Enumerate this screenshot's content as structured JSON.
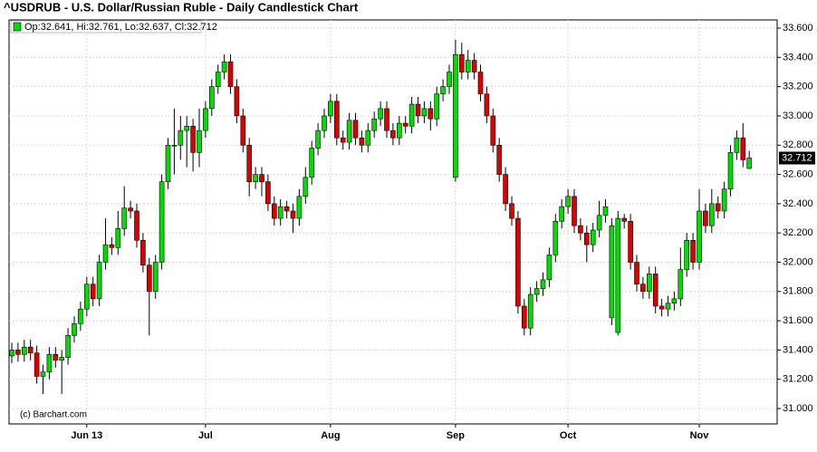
{
  "chart_data": {
    "type": "candlestick",
    "title": "^USDRUB - U.S. Dollar/Russian Ruble - Daily Candlestick Chart",
    "legend_text": "Op:32.641, Hi:32.761, Lo:32.637, Cl:32.712",
    "credit": "(c) Barchart.com",
    "up_color": "#00dd00",
    "down_color": "#dd0000",
    "grid": true,
    "ylim": [
      30.895,
      33.656
    ],
    "yticks": [
      {
        "value": 31.0,
        "label": "31.000"
      },
      {
        "value": 31.2,
        "label": "31.200"
      },
      {
        "value": 31.4,
        "label": "31.400"
      },
      {
        "value": 31.6,
        "label": "31.600"
      },
      {
        "value": 31.8,
        "label": "31.800"
      },
      {
        "value": 32.0,
        "label": "32.000"
      },
      {
        "value": 32.2,
        "label": "32.200"
      },
      {
        "value": 32.4,
        "label": "32.400"
      },
      {
        "value": 32.6,
        "label": "32.600"
      },
      {
        "value": 32.8,
        "label": "32.800"
      },
      {
        "value": 33.0,
        "label": "33.000"
      },
      {
        "value": 33.2,
        "label": "33.200"
      },
      {
        "value": 33.4,
        "label": "33.400"
      },
      {
        "value": 33.6,
        "label": "33.600"
      }
    ],
    "categories": [
      null,
      null,
      null,
      null,
      null,
      null,
      null,
      null,
      null,
      null,
      null,
      null,
      "Jun 13",
      null,
      null,
      null,
      null,
      null,
      null,
      null,
      null,
      null,
      null,
      null,
      null,
      null,
      null,
      null,
      null,
      null,
      null,
      "Jul",
      null,
      null,
      null,
      null,
      null,
      null,
      null,
      null,
      null,
      null,
      null,
      null,
      null,
      null,
      null,
      null,
      null,
      null,
      null,
      "Aug",
      null,
      null,
      null,
      null,
      null,
      null,
      null,
      null,
      null,
      null,
      null,
      null,
      null,
      null,
      null,
      null,
      null,
      null,
      null,
      "Sep",
      null,
      null,
      null,
      null,
      null,
      null,
      null,
      null,
      null,
      null,
      null,
      null,
      null,
      null,
      null,
      null,
      null,
      "Oct",
      null,
      null,
      null,
      null,
      null,
      null,
      null,
      null,
      null,
      null,
      null,
      null,
      null,
      null,
      null,
      null,
      null,
      null,
      null,
      null,
      "Nov",
      null,
      null,
      null,
      null,
      null,
      null,
      null,
      null
    ],
    "open": [
      31.36,
      31.4,
      31.37,
      31.42,
      31.38,
      31.22,
      31.25,
      31.37,
      31.33,
      31.35,
      31.5,
      31.58,
      31.68,
      31.85,
      31.75,
      32.0,
      32.12,
      32.1,
      32.23,
      32.37,
      32.35,
      32.15,
      31.98,
      31.8,
      32.0,
      32.55,
      32.8,
      32.8,
      32.9,
      32.93,
      32.75,
      32.9,
      33.05,
      33.2,
      33.3,
      33.37,
      33.2,
      33.0,
      32.8,
      32.55,
      32.6,
      32.55,
      32.4,
      32.3,
      32.38,
      32.35,
      32.3,
      32.45,
      32.58,
      32.78,
      32.9,
      33.0,
      33.1,
      32.85,
      32.82,
      32.97,
      32.85,
      32.8,
      32.9,
      32.98,
      33.05,
      32.9,
      32.85,
      32.95,
      32.93,
      33.08,
      33.0,
      33.05,
      32.98,
      33.15,
      33.2,
      32.58,
      33.42,
      33.3,
      33.38,
      33.3,
      33.15,
      33.0,
      32.8,
      32.6,
      32.4,
      32.3,
      31.7,
      31.55,
      31.78,
      31.82,
      31.88,
      32.05,
      32.28,
      32.38,
      32.45,
      32.25,
      32.2,
      32.12,
      32.22,
      32.32,
      31.62,
      31.52,
      32.3,
      32.28,
      32.0,
      31.85,
      31.8,
      31.92,
      31.7,
      31.68,
      31.72,
      31.75,
      31.95,
      32.15,
      32.0,
      32.35,
      32.25,
      32.4,
      32.35,
      32.5,
      32.75,
      32.85,
      32.641
    ],
    "high": [
      31.45,
      31.45,
      31.47,
      31.47,
      31.43,
      31.3,
      31.42,
      31.42,
      31.4,
      31.55,
      31.63,
      31.73,
      31.9,
      31.9,
      32.05,
      32.3,
      32.17,
      32.35,
      32.52,
      32.42,
      32.4,
      32.2,
      32.03,
      32.05,
      32.6,
      32.85,
      33.05,
      33.0,
      33.0,
      32.98,
      33.05,
      33.1,
      33.25,
      33.35,
      33.42,
      33.42,
      33.25,
      33.05,
      32.85,
      32.65,
      32.65,
      32.6,
      32.45,
      32.43,
      32.42,
      32.4,
      32.5,
      32.65,
      32.83,
      32.95,
      33.05,
      33.15,
      33.15,
      32.9,
      33.02,
      33.02,
      32.9,
      32.95,
      33.03,
      33.1,
      33.1,
      32.95,
      33.0,
      33.0,
      33.13,
      33.13,
      33.1,
      33.1,
      33.2,
      33.25,
      33.35,
      33.52,
      33.5,
      33.45,
      33.43,
      33.35,
      33.2,
      33.05,
      32.85,
      32.65,
      32.45,
      32.35,
      31.75,
      31.83,
      31.87,
      31.93,
      32.1,
      32.33,
      32.43,
      32.5,
      32.5,
      32.3,
      32.25,
      32.27,
      32.42,
      32.43,
      32.3,
      32.35,
      32.33,
      32.33,
      32.05,
      31.9,
      31.97,
      31.97,
      31.75,
      31.77,
      31.8,
      32.1,
      32.2,
      32.2,
      32.5,
      32.4,
      32.5,
      32.45,
      32.55,
      32.8,
      32.9,
      32.95,
      32.761
    ],
    "low": [
      31.31,
      31.32,
      31.32,
      31.33,
      31.17,
      31.1,
      31.2,
      31.28,
      31.1,
      31.3,
      31.45,
      31.53,
      31.63,
      31.7,
      31.7,
      31.95,
      32.05,
      32.05,
      32.18,
      32.3,
      32.1,
      31.93,
      31.5,
      31.75,
      31.95,
      32.5,
      32.6,
      32.7,
      32.65,
      32.62,
      32.65,
      32.85,
      33.0,
      33.15,
      33.25,
      33.15,
      32.95,
      32.75,
      32.45,
      32.5,
      32.45,
      32.35,
      32.25,
      32.25,
      32.3,
      32.2,
      32.25,
      32.4,
      32.53,
      32.73,
      32.85,
      32.95,
      32.8,
      32.77,
      32.77,
      32.8,
      32.75,
      32.75,
      32.85,
      32.93,
      32.85,
      32.8,
      32.8,
      32.88,
      32.88,
      32.95,
      32.95,
      32.9,
      32.93,
      33.1,
      33.15,
      32.55,
      33.25,
      33.25,
      33.25,
      33.1,
      32.95,
      32.75,
      32.55,
      32.35,
      32.25,
      31.65,
      31.5,
      31.5,
      31.73,
      31.77,
      31.83,
      32.0,
      32.23,
      32.33,
      32.2,
      32.15,
      32.0,
      32.07,
      32.17,
      32.27,
      31.57,
      31.5,
      32.23,
      31.95,
      31.8,
      31.75,
      31.75,
      31.65,
      31.63,
      31.63,
      31.67,
      31.7,
      31.9,
      31.95,
      31.95,
      32.2,
      32.2,
      32.3,
      32.3,
      32.45,
      32.7,
      32.65,
      32.637
    ],
    "close": [
      31.4,
      31.37,
      31.42,
      31.38,
      31.22,
      31.25,
      31.37,
      31.33,
      31.35,
      31.5,
      31.58,
      31.68,
      31.85,
      31.75,
      32.0,
      32.12,
      32.1,
      32.23,
      32.37,
      32.35,
      32.15,
      31.98,
      31.8,
      32.0,
      32.55,
      32.8,
      32.8,
      32.9,
      32.93,
      32.75,
      32.9,
      33.05,
      33.2,
      33.3,
      33.37,
      33.2,
      33.0,
      32.8,
      32.55,
      32.6,
      32.55,
      32.4,
      32.3,
      32.38,
      32.35,
      32.3,
      32.45,
      32.58,
      32.78,
      32.9,
      33.0,
      33.1,
      32.85,
      32.82,
      32.97,
      32.85,
      32.8,
      32.9,
      32.98,
      33.05,
      32.9,
      32.85,
      32.95,
      32.93,
      33.08,
      33.0,
      33.05,
      32.98,
      33.15,
      33.2,
      33.3,
      33.42,
      33.3,
      33.38,
      33.3,
      33.15,
      33.0,
      32.8,
      32.6,
      32.4,
      32.3,
      31.7,
      31.55,
      31.78,
      31.82,
      31.88,
      32.05,
      32.28,
      32.38,
      32.45,
      32.25,
      32.2,
      32.12,
      32.22,
      32.32,
      32.38,
      32.25,
      32.3,
      32.28,
      32.0,
      31.85,
      31.8,
      31.92,
      31.7,
      31.68,
      31.72,
      31.75,
      31.95,
      32.15,
      32.0,
      32.35,
      32.25,
      32.4,
      32.35,
      32.5,
      32.75,
      32.85,
      32.7,
      32.712
    ]
  }
}
